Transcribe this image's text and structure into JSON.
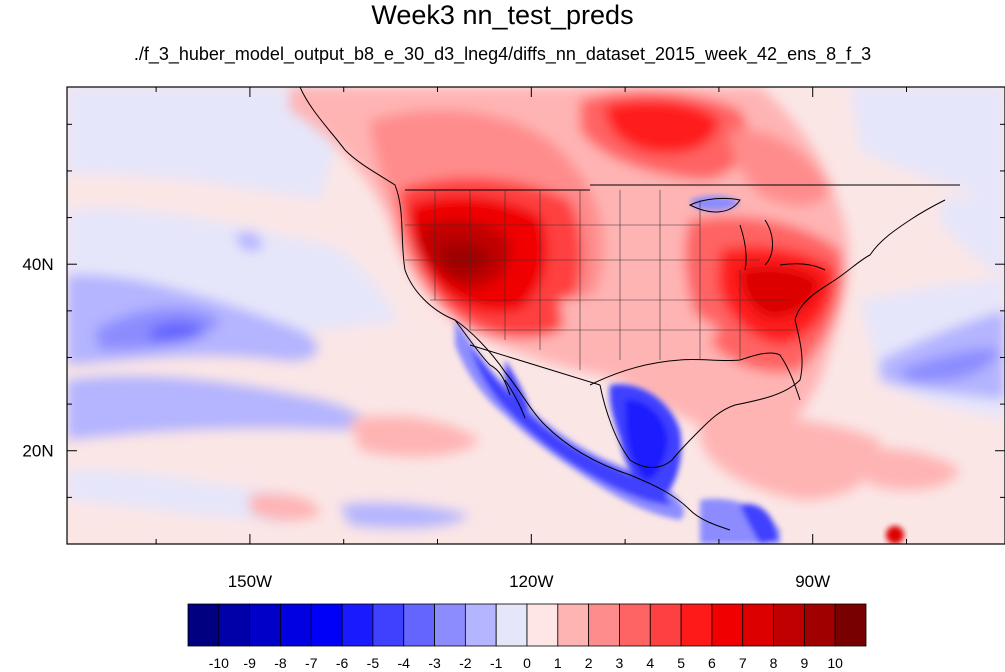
{
  "title": "Week3 nn_test_preds",
  "subtitle": "./f_3_huber_model_output_b8_e_30_d3_lneg4/diffs_nn_dataset_2015_week_42_ens_8_f_3",
  "map": {
    "lon_range": [
      -169.5,
      -69.5
    ],
    "lat_range": [
      10,
      59
    ],
    "lon_ticks": [
      {
        "value": -150,
        "label": "150W"
      },
      {
        "value": -120,
        "label": "120W"
      },
      {
        "value": -90,
        "label": "90W"
      }
    ],
    "lat_ticks": [
      {
        "value": 40,
        "label": "40N"
      },
      {
        "value": 20,
        "label": "20N"
      }
    ],
    "lon_minor_ticks": [
      -160,
      -140,
      -130,
      -110,
      -100,
      -80
    ],
    "lat_minor_ticks": [
      15,
      25,
      30,
      35,
      45,
      50,
      55
    ]
  },
  "colorbar": {
    "levels": [
      "-10",
      "-9",
      "-8",
      "-7",
      "-6",
      "-5",
      "-4",
      "-3",
      "-2",
      "-1",
      "0",
      "1",
      "2",
      "3",
      "4",
      "5",
      "6",
      "7",
      "8",
      "9",
      "10"
    ],
    "colors": [
      "#000080",
      "#0000a8",
      "#0000c8",
      "#0000e0",
      "#0000f8",
      "#1a1aff",
      "#4040ff",
      "#6464ff",
      "#8c8cff",
      "#b4b4ff",
      "#e6e6fa",
      "#ffe6e6",
      "#ffb4b4",
      "#ff8c8c",
      "#ff6464",
      "#ff4040",
      "#ff1a1a",
      "#f00000",
      "#dc0000",
      "#c00000",
      "#a00000",
      "#780000"
    ]
  }
}
